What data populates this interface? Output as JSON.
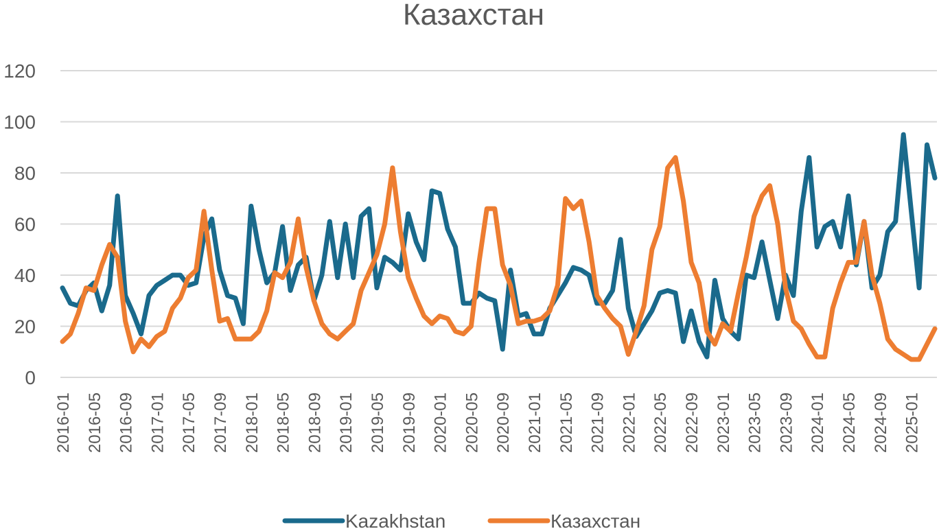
{
  "chart_data": {
    "type": "line",
    "title": "Казахстан",
    "xlabel": "",
    "ylabel": "",
    "ylim": [
      0,
      120
    ],
    "yticks": [
      0,
      20,
      40,
      60,
      80,
      100,
      120
    ],
    "grid": "horizontal",
    "legend": "bottom",
    "x": [
      "2016-01",
      "2016-02",
      "2016-03",
      "2016-04",
      "2016-05",
      "2016-06",
      "2016-07",
      "2016-08",
      "2016-09",
      "2016-10",
      "2016-11",
      "2016-12",
      "2017-01",
      "2017-02",
      "2017-03",
      "2017-04",
      "2017-05",
      "2017-06",
      "2017-07",
      "2017-08",
      "2017-09",
      "2017-10",
      "2017-11",
      "2017-12",
      "2018-01",
      "2018-02",
      "2018-03",
      "2018-04",
      "2018-05",
      "2018-06",
      "2018-07",
      "2018-08",
      "2018-09",
      "2018-10",
      "2018-11",
      "2018-12",
      "2019-01",
      "2019-02",
      "2019-03",
      "2019-04",
      "2019-05",
      "2019-06",
      "2019-07",
      "2019-08",
      "2019-09",
      "2019-10",
      "2019-11",
      "2019-12",
      "2020-01",
      "2020-02",
      "2020-03",
      "2020-04",
      "2020-05",
      "2020-06",
      "2020-07",
      "2020-08",
      "2020-09",
      "2020-10",
      "2020-11",
      "2020-12",
      "2021-01",
      "2021-02",
      "2021-03",
      "2021-04",
      "2021-05",
      "2021-06",
      "2021-07",
      "2021-08",
      "2021-09",
      "2021-10",
      "2021-11",
      "2021-12",
      "2022-01",
      "2022-02",
      "2022-03",
      "2022-04",
      "2022-05",
      "2022-06",
      "2022-07",
      "2022-08",
      "2022-09",
      "2022-10",
      "2022-11",
      "2022-12",
      "2023-01",
      "2023-02",
      "2023-03",
      "2023-04",
      "2023-05",
      "2023-06",
      "2023-07",
      "2023-08",
      "2023-09",
      "2023-10",
      "2023-11",
      "2023-12",
      "2024-01",
      "2024-02",
      "2024-03",
      "2024-04",
      "2024-05",
      "2024-06",
      "2024-07",
      "2024-08",
      "2024-09",
      "2024-10",
      "2024-11",
      "2024-12",
      "2025-01",
      "2025-02",
      "2025-03",
      "2025-04"
    ],
    "xtick_labels": [
      "2016-01",
      "2016-05",
      "2016-09",
      "2017-01",
      "2017-05",
      "2017-09",
      "2018-01",
      "2018-05",
      "2018-09",
      "2019-01",
      "2019-05",
      "2019-09",
      "2020-01",
      "2020-05",
      "2020-09",
      "2021-01",
      "2021-05",
      "2021-09",
      "2022-01",
      "2022-05",
      "2022-09",
      "2023-01",
      "2023-05",
      "2023-09",
      "2024-01",
      "2024-05",
      "2024-09",
      "2025-01"
    ],
    "series": [
      {
        "name": "Kazakhstan",
        "color": "#1a6a8c",
        "values": [
          35,
          29,
          28,
          34,
          37,
          26,
          36,
          71,
          32,
          25,
          17,
          32,
          36,
          38,
          40,
          40,
          36,
          37,
          55,
          62,
          42,
          32,
          31,
          21,
          67,
          50,
          37,
          41,
          59,
          34,
          44,
          47,
          30,
          40,
          61,
          39,
          60,
          39,
          63,
          66,
          35,
          47,
          45,
          42,
          64,
          53,
          46,
          73,
          72,
          58,
          51,
          29,
          29,
          33,
          31,
          30,
          11,
          42,
          24,
          25,
          17,
          17,
          27,
          32,
          37,
          43,
          42,
          40,
          29,
          29,
          34,
          54,
          27,
          16,
          21,
          26,
          33,
          34,
          33,
          14,
          26,
          14,
          8,
          38,
          23,
          18,
          15,
          40,
          39,
          53,
          38,
          23,
          40,
          32,
          65,
          86,
          51,
          59,
          61,
          51,
          71,
          44,
          61,
          35,
          40,
          57,
          61,
          95,
          65,
          35,
          91,
          78
        ]
      },
      {
        "name": "Казахстан",
        "color": "#ed7d31",
        "values": [
          14,
          17,
          25,
          35,
          34,
          44,
          52,
          47,
          22,
          10,
          15,
          12,
          16,
          18,
          27,
          31,
          39,
          42,
          65,
          42,
          22,
          23,
          15,
          15,
          15,
          18,
          26,
          41,
          39,
          45,
          62,
          43,
          30,
          21,
          17,
          15,
          18,
          21,
          34,
          41,
          48,
          60,
          82,
          57,
          39,
          31,
          24,
          21,
          24,
          23,
          18,
          17,
          20,
          45,
          66,
          66,
          44,
          36,
          21,
          22,
          22,
          23,
          26,
          36,
          70,
          66,
          69,
          53,
          32,
          27,
          23,
          20,
          9,
          18,
          28,
          50,
          59,
          82,
          86,
          69,
          45,
          37,
          18,
          13,
          21,
          18,
          33,
          47,
          63,
          71,
          75,
          60,
          35,
          22,
          19,
          13,
          8,
          8,
          27,
          37,
          45,
          45,
          61,
          40,
          29,
          15,
          11,
          9,
          7,
          7,
          13,
          19
        ]
      }
    ]
  }
}
